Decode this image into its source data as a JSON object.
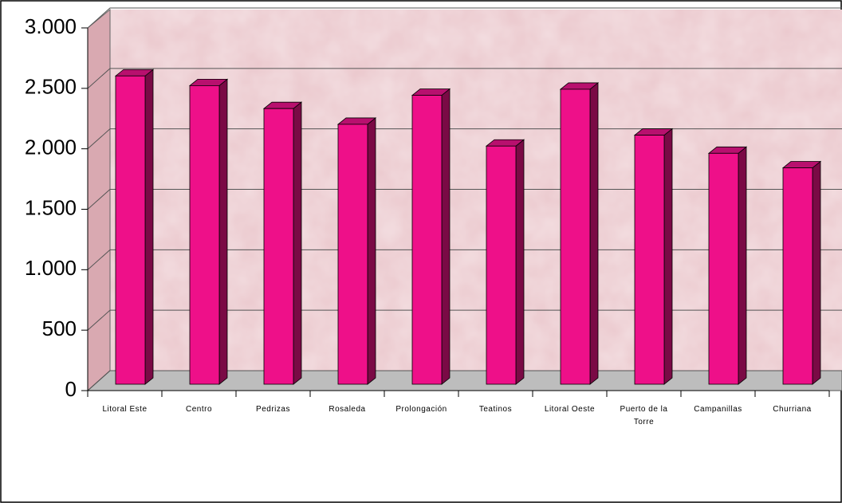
{
  "chart_data": {
    "type": "bar",
    "categories": [
      "Litoral Este",
      "Centro",
      "Pedrizas",
      "Rosaleda",
      "Prolongación",
      "Teatinos",
      "Litoral Oeste",
      "Puerto de la Torre",
      "Campanillas",
      "Churriana"
    ],
    "values": [
      2550,
      2470,
      2280,
      2150,
      2390,
      1970,
      2440,
      2060,
      1910,
      1790
    ],
    "color": "#ee1089",
    "ylim": [
      0,
      3000
    ],
    "yticks": [
      0,
      500,
      {
        "value": 1000,
        "label": "1.000"
      },
      {
        "value": 1500,
        "label": "1.500"
      },
      {
        "value": 2000,
        "label": "2.000"
      },
      {
        "value": 2500,
        "label": "2.500"
      },
      {
        "value": 3000,
        "label": "3.000"
      }
    ],
    "grid": true
  }
}
